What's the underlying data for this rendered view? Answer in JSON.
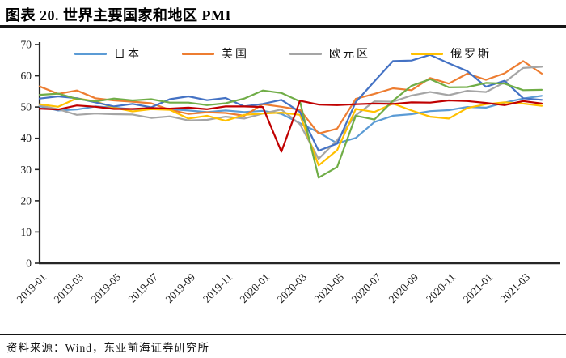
{
  "header": {
    "title": "图表 20. 世界主要国家和地区 PMI"
  },
  "footer": {
    "source": "资料来源：Wind，东亚前海证券研究所"
  },
  "legend": {
    "items": [
      {
        "label": "日本",
        "color": "#5B9BD5"
      },
      {
        "label": "美国",
        "color": "#ED7D31"
      },
      {
        "label": "欧元区",
        "color": "#A5A5A5"
      },
      {
        "label": "俄罗斯",
        "color": "#FFC000"
      }
    ]
  },
  "chart_data": {
    "type": "line",
    "title": "图表 20. 世界主要国家和地区 PMI",
    "xlabel": "",
    "ylabel": "",
    "ylim": [
      0,
      70
    ],
    "y_ticks": [
      0,
      10,
      20,
      30,
      40,
      50,
      60,
      70
    ],
    "grid": false,
    "legend_position": "top",
    "x": [
      "2019-01",
      "2019-02",
      "2019-03",
      "2019-04",
      "2019-05",
      "2019-06",
      "2019-07",
      "2019-08",
      "2019-09",
      "2019-10",
      "2019-11",
      "2019-12",
      "2020-01",
      "2020-02",
      "2020-03",
      "2020-04",
      "2020-05",
      "2020-06",
      "2020-07",
      "2020-08",
      "2020-09",
      "2020-10",
      "2020-11",
      "2020-12",
      "2021-01",
      "2021-02",
      "2021-03",
      "2021-04"
    ],
    "x_tick_labels": [
      "2019-01",
      "2019-03",
      "2019-05",
      "2019-07",
      "2019-09",
      "2019-11",
      "2020-01",
      "2020-03",
      "2020-05",
      "2020-07",
      "2020-09",
      "2020-11",
      "2021-01",
      "2021-03"
    ],
    "series": [
      {
        "name": "日本",
        "in_legend": true,
        "color": "#5B9BD5",
        "values": [
          50.3,
          48.9,
          49.2,
          50.2,
          49.8,
          49.3,
          49.4,
          49.3,
          48.9,
          48.4,
          48.9,
          48.4,
          48.8,
          47.8,
          44.8,
          41.9,
          38.4,
          40.1,
          45.2,
          47.2,
          47.7,
          48.7,
          49.0,
          50.0,
          49.8,
          51.4,
          52.7,
          53.6
        ]
      },
      {
        "name": "美国",
        "in_legend": true,
        "color": "#ED7D31",
        "values": [
          56.6,
          54.2,
          55.3,
          52.8,
          52.1,
          51.7,
          51.2,
          49.1,
          47.8,
          48.3,
          48.1,
          47.2,
          50.9,
          50.1,
          49.1,
          41.5,
          43.1,
          52.6,
          54.2,
          56.0,
          55.4,
          59.3,
          57.5,
          60.7,
          58.7,
          60.8,
          64.7,
          60.7
        ]
      },
      {
        "name": "欧元区",
        "in_legend": true,
        "color": "#A5A5A5",
        "values": [
          50.5,
          49.3,
          47.5,
          47.9,
          47.7,
          47.6,
          46.5,
          47.0,
          45.7,
          45.9,
          46.9,
          46.3,
          47.9,
          49.2,
          44.5,
          33.4,
          39.4,
          47.4,
          51.8,
          51.7,
          53.7,
          54.8,
          53.8,
          55.2,
          54.8,
          57.9,
          62.5,
          62.9
        ]
      },
      {
        "name": "俄罗斯",
        "in_legend": true,
        "color": "#FFC000",
        "values": [
          50.9,
          50.1,
          52.8,
          51.8,
          49.8,
          48.6,
          49.3,
          49.1,
          46.3,
          47.2,
          45.6,
          47.5,
          47.9,
          48.2,
          47.5,
          31.3,
          36.2,
          49.4,
          48.4,
          51.1,
          48.9,
          46.9,
          46.3,
          49.7,
          50.9,
          51.5,
          51.1,
          50.4
        ]
      },
      {
        "name": "unlabeled-dark-blue",
        "in_legend": false,
        "color": "#4472C4",
        "values": [
          52.7,
          53.4,
          52.8,
          51.5,
          50.2,
          51.0,
          49.9,
          52.5,
          53.4,
          52.2,
          52.9,
          50.2,
          51.0,
          52.3,
          48.4,
          36.0,
          38.3,
          51.6,
          58.2,
          64.7,
          64.9,
          66.7,
          64.0,
          61.5,
          56.5,
          58.4,
          52.8,
          52.3
        ]
      },
      {
        "name": "unlabeled-green",
        "in_legend": false,
        "color": "#70AD47",
        "values": [
          53.9,
          54.3,
          52.6,
          51.8,
          52.7,
          52.1,
          52.5,
          51.4,
          51.4,
          50.6,
          51.2,
          52.7,
          55.3,
          54.5,
          51.8,
          27.4,
          30.8,
          47.2,
          46.0,
          52.0,
          56.8,
          58.9,
          56.3,
          56.4,
          57.7,
          57.5,
          55.4,
          55.5
        ]
      },
      {
        "name": "unlabeled-dark-red",
        "in_legend": false,
        "color": "#C00000",
        "values": [
          49.5,
          49.2,
          50.5,
          50.1,
          49.4,
          49.4,
          49.7,
          49.5,
          49.8,
          49.3,
          50.2,
          50.2,
          50.0,
          35.7,
          52.0,
          50.8,
          50.6,
          50.9,
          51.1,
          51.0,
          51.5,
          51.4,
          52.1,
          51.9,
          51.3,
          50.6,
          51.9,
          51.1
        ]
      }
    ]
  }
}
